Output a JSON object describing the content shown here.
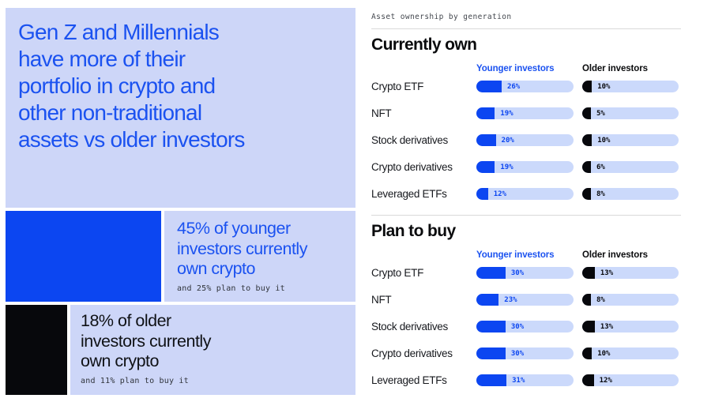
{
  "colors": {
    "accent_blue": "#1b52f0",
    "fill_blue": "#0c46f1",
    "fill_black": "#07080c",
    "panel_light": "#cdd6f8",
    "bar_track": "#cbd9fb"
  },
  "left": {
    "headline_lines": {
      "0": "Gen Z and Millennials",
      "1": "have more of their",
      "2": "portfolio in crypto and",
      "3": "other non-traditional",
      "4": "assets vs older investors"
    },
    "younger_stat": {
      "value_pct": 45,
      "lines": {
        "0": "45% of younger",
        "1": "investors currently",
        "2": "own crypto"
      },
      "note": "and 25% plan to buy it"
    },
    "older_stat": {
      "value_pct": 18,
      "lines": {
        "0": "18% of older",
        "1": "investors currently",
        "2": "own crypto"
      },
      "note": "and 11% plan to buy it"
    }
  },
  "right": {
    "kicker": "Asset ownership by generation"
  },
  "chart_data": [
    {
      "type": "bar",
      "title": "Currently own",
      "categories": [
        "Crypto ETF",
        "NFT",
        "Stock derivatives",
        "Crypto derivatives",
        "Leveraged ETFs"
      ],
      "series": [
        {
          "name": "Younger investors",
          "color": "#0c46f1",
          "values": [
            26,
            19,
            20,
            19,
            12
          ]
        },
        {
          "name": "Older investors",
          "color": "#07080c",
          "values": [
            10,
            5,
            10,
            6,
            8
          ]
        }
      ],
      "unit": "%",
      "xlim": [
        0,
        100
      ],
      "legend_position": "top",
      "grid": false
    },
    {
      "type": "bar",
      "title": "Plan to buy",
      "categories": [
        "Crypto ETF",
        "NFT",
        "Stock derivatives",
        "Crypto derivatives",
        "Leveraged ETFs"
      ],
      "series": [
        {
          "name": "Younger investors",
          "color": "#0c46f1",
          "values": [
            30,
            23,
            30,
            30,
            31
          ]
        },
        {
          "name": "Older investors",
          "color": "#07080c",
          "values": [
            13,
            8,
            13,
            10,
            12
          ]
        }
      ],
      "unit": "%",
      "xlim": [
        0,
        100
      ],
      "legend_position": "top",
      "grid": false
    }
  ]
}
